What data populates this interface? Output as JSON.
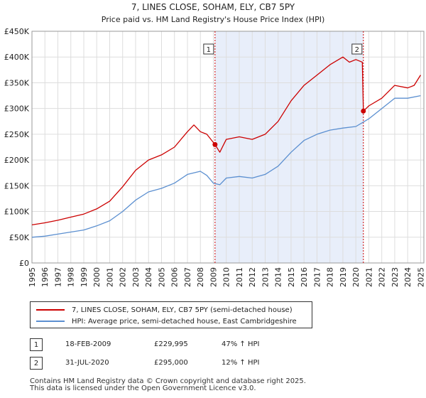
{
  "chart_data": {
    "type": "line",
    "title": "7, LINES CLOSE, SOHAM, ELY, CB7 5PY",
    "subtitle": "Price paid vs. HM Land Registry's House Price Index (HPI)",
    "xlim": [
      1995,
      2025.25
    ],
    "ylim": [
      0,
      450000
    ],
    "x_ticks": [
      "1995",
      "1996",
      "1997",
      "1998",
      "1999",
      "2000",
      "2001",
      "2002",
      "2003",
      "2004",
      "2005",
      "2006",
      "2007",
      "2008",
      "2009",
      "2010",
      "2011",
      "2012",
      "2013",
      "2014",
      "2015",
      "2016",
      "2017",
      "2018",
      "2019",
      "2020",
      "2021",
      "2022",
      "2023",
      "2024",
      "2025"
    ],
    "y_ticks": [
      {
        "value": 0,
        "label": "£0"
      },
      {
        "value": 50000,
        "label": "£50K"
      },
      {
        "value": 100000,
        "label": "£100K"
      },
      {
        "value": 150000,
        "label": "£150K"
      },
      {
        "value": 200000,
        "label": "£200K"
      },
      {
        "value": 250000,
        "label": "£250K"
      },
      {
        "value": 300000,
        "label": "£300K"
      },
      {
        "value": 350000,
        "label": "£350K"
      },
      {
        "value": 400000,
        "label": "£400K"
      },
      {
        "value": 450000,
        "label": "£450K"
      }
    ],
    "shaded_range": [
      2009.13,
      2020.58
    ],
    "series": [
      {
        "name": "7, LINES CLOSE, SOHAM, ELY, CB7 5PY (semi-detached house)",
        "color": "#cc0000",
        "x": [
          1995,
          1996,
          1997,
          1998,
          1999,
          2000,
          2001,
          2002,
          2003,
          2004,
          2005,
          2006,
          2007,
          2007.5,
          2008,
          2008.5,
          2009.13,
          2009.5,
          2010,
          2011,
          2012,
          2013,
          2014,
          2015,
          2016,
          2017,
          2018,
          2019,
          2019.5,
          2020,
          2020.5,
          2020.58,
          2021,
          2022,
          2023,
          2024,
          2024.5,
          2025
        ],
        "values": [
          74000,
          78000,
          83000,
          89000,
          95000,
          105000,
          120000,
          148000,
          180000,
          200000,
          210000,
          225000,
          255000,
          268000,
          255000,
          250000,
          229995,
          215000,
          240000,
          245000,
          240000,
          250000,
          275000,
          315000,
          345000,
          365000,
          385000,
          400000,
          390000,
          395000,
          390000,
          295000,
          305000,
          320000,
          345000,
          340000,
          345000,
          365000
        ]
      },
      {
        "name": "HPI: Average price, semi-detached house, East Cambridgeshire",
        "color": "#5b8fd0",
        "x": [
          1995,
          1996,
          1997,
          1998,
          1999,
          2000,
          2001,
          2002,
          2003,
          2004,
          2005,
          2006,
          2007,
          2008,
          2008.5,
          2009,
          2009.5,
          2010,
          2011,
          2012,
          2013,
          2014,
          2015,
          2016,
          2017,
          2018,
          2019,
          2020,
          2021,
          2022,
          2023,
          2024,
          2025
        ],
        "values": [
          50000,
          52000,
          56000,
          60000,
          64000,
          72000,
          82000,
          100000,
          122000,
          138000,
          145000,
          155000,
          172000,
          178000,
          170000,
          155000,
          152000,
          165000,
          168000,
          165000,
          172000,
          188000,
          215000,
          238000,
          250000,
          258000,
          262000,
          265000,
          280000,
          300000,
          320000,
          320000,
          325000
        ]
      }
    ],
    "annotations": [
      {
        "id": "1",
        "x": 2009.13,
        "value": 229995
      },
      {
        "id": "2",
        "x": 2020.58,
        "value": 295000
      }
    ]
  },
  "legend": {
    "items": [
      {
        "label": "7, LINES CLOSE, SOHAM, ELY, CB7 5PY (semi-detached house)",
        "color": "#cc0000"
      },
      {
        "label": "HPI: Average price, semi-detached house, East Cambridgeshire",
        "color": "#5b8fd0"
      }
    ]
  },
  "transactions": [
    {
      "id": "1",
      "date": "18-FEB-2009",
      "price": "£229,995",
      "hpi": "47% ↑ HPI"
    },
    {
      "id": "2",
      "date": "31-JUL-2020",
      "price": "£295,000",
      "hpi": "12% ↑ HPI"
    }
  ],
  "footer": {
    "line1": "Contains HM Land Registry data © Crown copyright and database right 2025.",
    "line2": "This data is licensed under the Open Government Licence v3.0."
  }
}
